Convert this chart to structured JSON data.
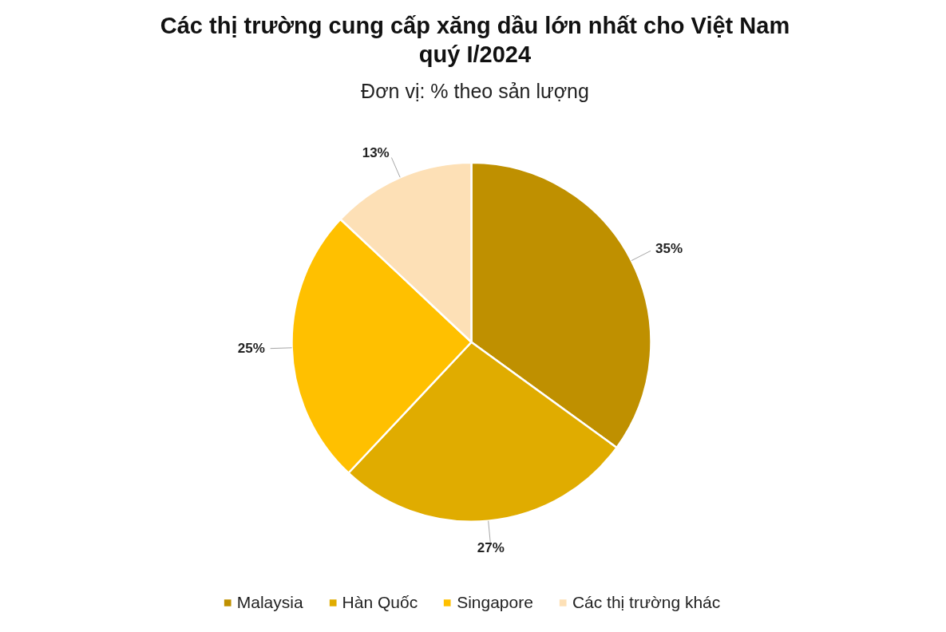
{
  "chart_data": {
    "type": "pie",
    "title": "Các thị trường cung cấp xăng dầu lớn nhất cho Việt Nam quý I/2024",
    "subtitle": "Đơn vị: % theo sản lượng",
    "categories": [
      "Malaysia",
      "Hàn Quốc",
      "Singapore",
      "Các thị trường khác"
    ],
    "values": [
      35,
      27,
      25,
      13
    ],
    "colors": [
      "#bf9000",
      "#e0ac00",
      "#ffc000",
      "#fde0b6"
    ],
    "value_labels": [
      "35%",
      "27%",
      "25%",
      "13%"
    ],
    "legend": "bottom"
  }
}
